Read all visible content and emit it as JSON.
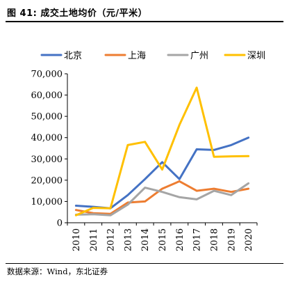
{
  "figure_title": "图 41: 成交土地均价（元/平米）",
  "source": "数据来源：Wind，东北证券",
  "colors": {
    "北京": "#4472C4",
    "上海": "#ED7D31",
    "广州": "#A5A5A5",
    "深圳": "#FFC000"
  },
  "chart_data": {
    "type": "line",
    "title": "",
    "xlabel": "",
    "ylabel": "",
    "x": [
      "2010",
      "2011",
      "2012",
      "2013",
      "2014",
      "2015",
      "2016",
      "2017",
      "2018",
      "2019",
      "2020"
    ],
    "ylim": [
      0,
      70000
    ],
    "yticks": [
      0,
      10000,
      20000,
      30000,
      40000,
      50000,
      60000,
      70000
    ],
    "ytick_labels": [
      "0",
      "10,000",
      "20,000",
      "30,000",
      "40,000",
      "50,000",
      "60,000",
      "70,000"
    ],
    "grid": false,
    "legend": "top",
    "series": [
      {
        "name": "北京",
        "values": [
          8000,
          7500,
          6800,
          13000,
          20500,
          28500,
          20500,
          34500,
          34200,
          36500,
          40000
        ]
      },
      {
        "name": "上海",
        "values": [
          6000,
          4500,
          4200,
          9500,
          10000,
          16000,
          19500,
          15000,
          16000,
          14500,
          16000
        ]
      },
      {
        "name": "广州",
        "values": [
          3800,
          4000,
          3500,
          8500,
          16500,
          14500,
          12000,
          11000,
          15000,
          13000,
          18500
        ]
      },
      {
        "name": "深圳",
        "values": [
          3500,
          7000,
          6800,
          36500,
          38000,
          25000,
          46000,
          63500,
          31000,
          31200,
          31300
        ]
      }
    ]
  }
}
